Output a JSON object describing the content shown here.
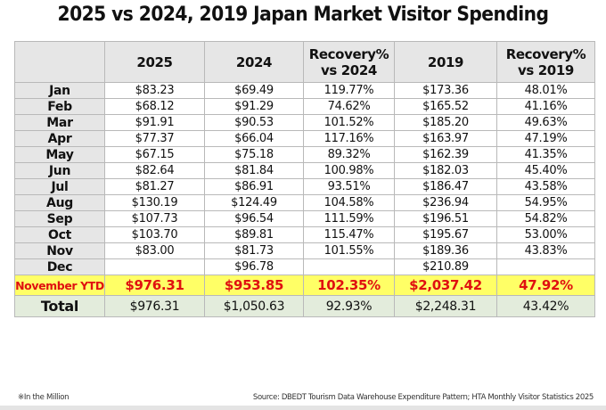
{
  "title": "2025 vs 2024, 2019 Japan Market Visitor Spending",
  "table": {
    "headers": [
      "",
      "2025",
      "2024",
      "Recovery%\nvs 2024",
      "2019",
      "Recovery%\nvs 2019"
    ],
    "header_lines": [
      [
        ""
      ],
      [
        "2025"
      ],
      [
        "2024"
      ],
      [
        "Recovery%",
        "vs 2024"
      ],
      [
        "2019"
      ],
      [
        "Recovery%",
        "vs 2019"
      ]
    ],
    "rows": [
      {
        "month": "Jan",
        "y2025": "$83.23",
        "y2024": "$69.49",
        "rec2024": "119.77%",
        "y2019": "$173.36",
        "rec2019": "48.01%"
      },
      {
        "month": "Feb",
        "y2025": "$68.12",
        "y2024": "$91.29",
        "rec2024": "74.62%",
        "y2019": "$165.52",
        "rec2019": "41.16%"
      },
      {
        "month": "Mar",
        "y2025": "$91.91",
        "y2024": "$90.53",
        "rec2024": "101.52%",
        "y2019": "$185.20",
        "rec2019": "49.63%"
      },
      {
        "month": "Apr",
        "y2025": "$77.37",
        "y2024": "$66.04",
        "rec2024": "117.16%",
        "y2019": "$163.97",
        "rec2019": "47.19%"
      },
      {
        "month": "May",
        "y2025": "$67.15",
        "y2024": "$75.18",
        "rec2024": "89.32%",
        "y2019": "$162.39",
        "rec2019": "41.35%"
      },
      {
        "month": "Jun",
        "y2025": "$82.64",
        "y2024": "$81.84",
        "rec2024": "100.98%",
        "y2019": "$182.03",
        "rec2019": "45.40%"
      },
      {
        "month": "Jul",
        "y2025": "$81.27",
        "y2024": "$86.91",
        "rec2024": "93.51%",
        "y2019": "$186.47",
        "rec2019": "43.58%"
      },
      {
        "month": "Aug",
        "y2025": "$130.19",
        "y2024": "$124.49",
        "rec2024": "104.58%",
        "y2019": "$236.94",
        "rec2019": "54.95%"
      },
      {
        "month": "Sep",
        "y2025": "$107.73",
        "y2024": "$96.54",
        "rec2024": "111.59%",
        "y2019": "$196.51",
        "rec2019": "54.82%"
      },
      {
        "month": "Oct",
        "y2025": "$103.70",
        "y2024": "$89.81",
        "rec2024": "115.47%",
        "y2019": "$195.67",
        "rec2019": "53.00%"
      },
      {
        "month": "Nov",
        "y2025": "$83.00",
        "y2024": "$81.73",
        "rec2024": "101.55%",
        "y2019": "$189.36",
        "rec2019": "43.83%"
      },
      {
        "month": "Dec",
        "y2025": "",
        "y2024": "$96.78",
        "rec2024": "",
        "y2019": "$210.89",
        "rec2019": ""
      }
    ],
    "ytd": {
      "label": "November YTD",
      "y2025": "$976.31",
      "y2024": "$953.85",
      "rec2024": "102.35%",
      "y2019": "$2,037.42",
      "rec2019": "47.92%"
    },
    "total": {
      "label": "Total",
      "y2025": "$976.31",
      "y2024": "$1,050.63",
      "rec2024": "92.93%",
      "y2019": "$2,248.31",
      "rec2019": "43.42%"
    }
  },
  "footnote": "※In the Million",
  "source": "Source: DBEDT Tourism Data Warehouse Expenditure Pattern; HTA Monthly Visitor Statistics 2025",
  "colors": {
    "header_bg": "#e6e6e6",
    "ytd_bg": "#ffff66",
    "ytd_text": "#e01010",
    "total_bg": "#e3ecdc",
    "border": "#b9b9b9"
  }
}
